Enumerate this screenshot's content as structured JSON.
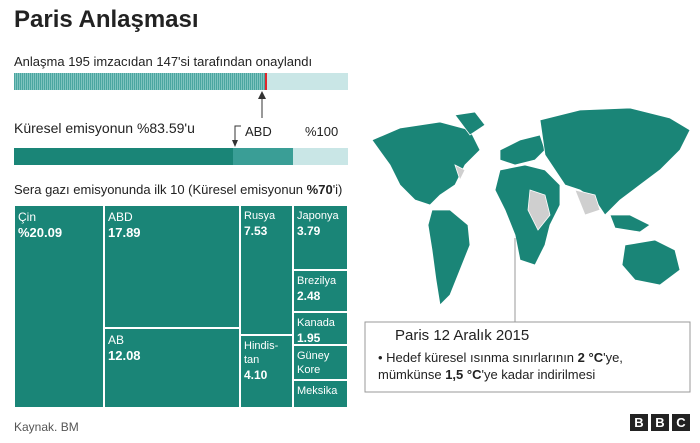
{
  "title": "Paris Anlaşması",
  "ratification": {
    "text": "Anlaşma 195 imzacıdan 147'si tarafından onaylandı",
    "signatories": 195,
    "ratified": 147
  },
  "emissions": {
    "text": "Küresel emisyonun %83.59'u",
    "value": 83.59,
    "total": 100,
    "total_label": "%100",
    "us_label": "ABD"
  },
  "top10": {
    "title_parts": [
      "Sera gazı emisyonunda ilk 10 (Küresel emisyonun ",
      "%70",
      "'i)"
    ],
    "items": [
      {
        "name": "Çin",
        "value": 20.09,
        "value_label": "%20.09"
      },
      {
        "name": "ABD",
        "value": 17.89
      },
      {
        "name": "AB",
        "value": 12.08
      },
      {
        "name": "Rusya",
        "value": 7.53
      },
      {
        "name": "Hindis-\ntan",
        "value": 4.1,
        "value_label": "4.10"
      },
      {
        "name": "Japonya",
        "value": 3.79
      },
      {
        "name": "Brezilya",
        "value": 2.48
      },
      {
        "name": "Kanada",
        "value": 1.95
      },
      {
        "name": "Güney\nKore"
      },
      {
        "name": "Meksika"
      }
    ]
  },
  "info": {
    "title": "Paris   12 Aralık 2015",
    "bullet_parts": [
      "Hedef küresel ısınma sınırlarının ",
      "2 °C",
      "'ye, mümkünse ",
      "1,5 °C",
      "'ye kadar indirilmesi"
    ]
  },
  "source": "Kaynak. BM",
  "logo": [
    "B",
    "B",
    "C"
  ]
}
